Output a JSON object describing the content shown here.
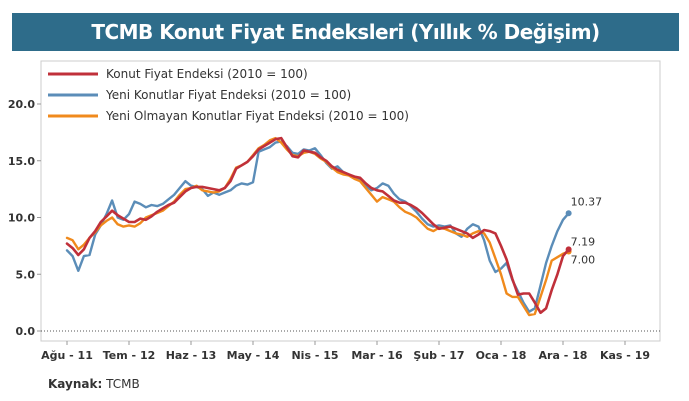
{
  "title": "TCMB Konut Fiyat Endeksleri (Yıllık % Değişim)",
  "source": {
    "label": "Kaynak:",
    "value": "TCMB"
  },
  "colors": {
    "title_bg": "#2e6c8a",
    "konut": "#c0303a",
    "yeni": "#5b8db8",
    "yeni_olmayan": "#f08a1c"
  },
  "chart_data": {
    "type": "line",
    "title": "TCMB Konut Fiyat Endeksleri (Yıllık % Değişim)",
    "xlabel": "",
    "ylabel": "",
    "ylim": [
      0,
      22
    ],
    "yticks": [
      0.0,
      5.0,
      10.0,
      15.0,
      20.0
    ],
    "ytick_labels": [
      "0.0",
      "5.0",
      "10.0",
      "15.0",
      "20.0"
    ],
    "x_start": "2011-08",
    "x_end": "2019-11",
    "xtick_labels": [
      "Ağu - 11",
      "Tem - 12",
      "Haz - 13",
      "May - 14",
      "Nis - 15",
      "Mar - 16",
      "Şub - 17",
      "Oca - 18",
      "Ara - 18",
      "Kas - 19"
    ],
    "xtick_dates": [
      "2011-08",
      "2012-07",
      "2013-06",
      "2014-05",
      "2015-04",
      "2016-03",
      "2017-02",
      "2018-01",
      "2018-12",
      "2019-11"
    ],
    "grid": false,
    "legend_position": "top-left",
    "series": [
      {
        "name": "Konut Fiyat Endeksi (2010 = 100)",
        "color": "#c0303a",
        "x": [
          "2011-08",
          "2011-10",
          "2011-12",
          "2012-02",
          "2012-04",
          "2012-06",
          "2012-07",
          "2012-09",
          "2012-11",
          "2013-01",
          "2013-03",
          "2013-05",
          "2013-06",
          "2013-08",
          "2013-10",
          "2013-12",
          "2014-02",
          "2014-04",
          "2014-05",
          "2014-07",
          "2014-09",
          "2014-11",
          "2015-01",
          "2015-03",
          "2015-04",
          "2015-06",
          "2015-08",
          "2015-10",
          "2015-12",
          "2016-02",
          "2016-03",
          "2016-05",
          "2016-07",
          "2016-09",
          "2016-11",
          "2017-01",
          "2017-02",
          "2017-04",
          "2017-06",
          "2017-08",
          "2017-10",
          "2017-12",
          "2018-01",
          "2018-03",
          "2018-05",
          "2018-07",
          "2018-09",
          "2018-11",
          "2018-12",
          "2019-02",
          "2019-04",
          "2019-06",
          "2019-08",
          "2019-09"
        ],
        "y": [
          7.7,
          6.7,
          8.2,
          9.6,
          10.6,
          9.9,
          9.6,
          9.8,
          10.5,
          11.1,
          11.8,
          12.6,
          12.7,
          12.5,
          12.6,
          14.3,
          14.9,
          16.0,
          16.6,
          16.9,
          15.4,
          15.9,
          15.7,
          15.0,
          14.2,
          13.8,
          13.5,
          12.6,
          12.3,
          11.5,
          11.3,
          10.8,
          9.9,
          9.0,
          9.2,
          8.8,
          8.2,
          8.9,
          8.6,
          6.3,
          3.2,
          3.3,
          1.6,
          3.6,
          6.6,
          7.19,
          7.19,
          7.19,
          7.19,
          7.19,
          7.19,
          7.19,
          7.19,
          7.19
        ]
      },
      {
        "name": "Yeni Konutlar Fiyat Endeksi (2010 = 100)",
        "color": "#5b8db8",
        "x": [],
        "y": []
      },
      {
        "name": "Yeni Olmayan Konutlar Fiyat Endeksi (2010 = 100)",
        "color": "#f08a1c",
        "x": [],
        "y": []
      }
    ],
    "end_labels": [
      {
        "series": "Yeni Konutlar Fiyat Endeksi (2010 = 100)",
        "value": 10.37,
        "text": "10.37"
      },
      {
        "series": "Konut Fiyat Endeksi (2010 = 100)",
        "value": 7.19,
        "text": "7.19"
      },
      {
        "series": "Yeni Olmayan Konutlar Fiyat Endeksi (2010 = 100)",
        "value": 7.0,
        "text": "7.00"
      }
    ]
  }
}
